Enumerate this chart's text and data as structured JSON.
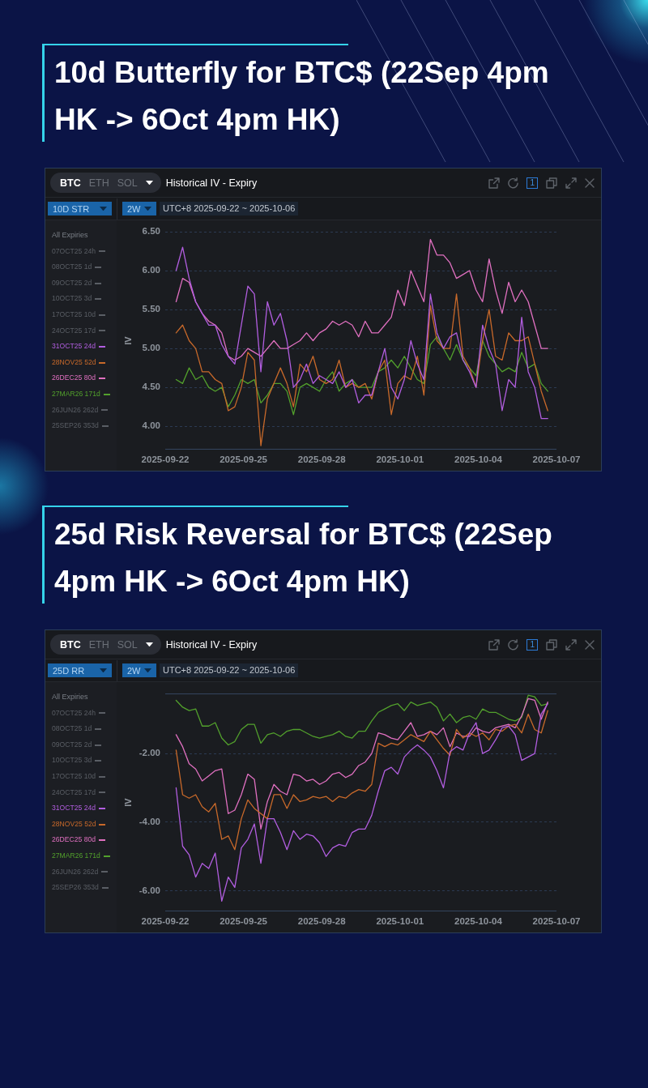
{
  "chart_data": [
    {
      "type": "line",
      "title": "10d Butterfly for BTC$ (22Sep 4pm HK -> 6Oct 4pm HK)",
      "ylabel": "IV",
      "legend": "left",
      "legend_title": "All Expiries",
      "grid": "y",
      "annotations": [
        "BTC",
        "ETH",
        "SOL",
        "Historical IV - Expiry",
        "10D STR",
        "2W",
        "UTC+8 2025-09-22 ~ 2025-10-06",
        "1"
      ],
      "xlim": [
        "2025-09-22",
        "2025-10-07"
      ],
      "xticks": [
        "2025-09-22",
        "2025-09-25",
        "2025-09-28",
        "2025-10-01",
        "2025-10-04",
        "2025-10-07"
      ],
      "ylim": [
        3.7,
        6.5
      ],
      "yticks": [
        {
          "value": 4,
          "label": "4.00"
        },
        {
          "value": 4.5,
          "label": "4.50"
        },
        {
          "value": 5,
          "label": "5.00"
        },
        {
          "value": 5.5,
          "label": "5.50"
        },
        {
          "value": 6,
          "label": "6.00"
        },
        {
          "value": 6.5,
          "label": "6.50"
        }
      ],
      "x": [
        "2025-09-22T10:00",
        "2025-09-22T16:00",
        "2025-09-22T22:00",
        "2025-09-23T04:00",
        "2025-09-23T10:00",
        "2025-09-23T16:00",
        "2025-09-23T22:00",
        "2025-09-24T04:00",
        "2025-09-24T10:00",
        "2025-09-24T16:00",
        "2025-09-24T22:00",
        "2025-09-25T04:00",
        "2025-09-25T10:00",
        "2025-09-25T16:00",
        "2025-09-25T22:00",
        "2025-09-26T04:00",
        "2025-09-26T10:00",
        "2025-09-26T16:00",
        "2025-09-26T22:00",
        "2025-09-27T04:00",
        "2025-09-27T10:00",
        "2025-09-27T16:00",
        "2025-09-27T22:00",
        "2025-09-28T04:00",
        "2025-09-28T10:00",
        "2025-09-28T16:00",
        "2025-09-28T22:00",
        "2025-09-29T04:00",
        "2025-09-29T10:00",
        "2025-09-29T16:00",
        "2025-09-29T22:00",
        "2025-09-30T04:00",
        "2025-09-30T10:00",
        "2025-09-30T16:00",
        "2025-09-30T22:00",
        "2025-10-01T04:00",
        "2025-10-01T10:00",
        "2025-10-01T16:00",
        "2025-10-01T22:00",
        "2025-10-02T04:00",
        "2025-10-02T10:00",
        "2025-10-02T16:00",
        "2025-10-02T22:00",
        "2025-10-03T04:00",
        "2025-10-03T10:00",
        "2025-10-03T16:00",
        "2025-10-03T22:00",
        "2025-10-04T04:00",
        "2025-10-04T10:00",
        "2025-10-04T16:00",
        "2025-10-04T22:00",
        "2025-10-05T04:00",
        "2025-10-05T10:00",
        "2025-10-05T16:00",
        "2025-10-05T22:00",
        "2025-10-06T04:00",
        "2025-10-06T10:00",
        "2025-10-06T16:00"
      ],
      "series": [
        {
          "name": "07OCT25 24h",
          "color": "#5a5e65",
          "values": [
            null,
            null,
            null,
            null,
            null,
            null,
            null,
            null,
            null,
            null,
            null,
            null,
            null,
            null,
            null,
            null,
            null,
            null,
            null,
            null,
            null,
            null,
            null,
            null,
            null,
            null,
            null,
            null,
            null,
            null,
            null,
            null,
            null,
            null,
            null,
            null,
            null,
            null,
            null,
            null,
            null,
            null,
            null,
            null,
            null,
            null,
            null,
            null,
            null,
            null,
            null,
            null,
            null,
            null,
            null,
            null,
            null,
            null
          ]
        },
        {
          "name": "08OCT25 1d",
          "color": "#5a5e65",
          "values": [
            null,
            null,
            null,
            null,
            null,
            null,
            null,
            null,
            null,
            null,
            null,
            null,
            null,
            null,
            null,
            null,
            null,
            null,
            null,
            null,
            null,
            null,
            null,
            null,
            null,
            null,
            null,
            null,
            null,
            null,
            null,
            null,
            null,
            null,
            null,
            null,
            null,
            null,
            null,
            null,
            null,
            null,
            null,
            null,
            null,
            null,
            null,
            null,
            null,
            null,
            null,
            null,
            null,
            null,
            null,
            null,
            null,
            null
          ]
        },
        {
          "name": "09OCT25 2d",
          "color": "#5a5e65",
          "values": [
            null,
            null,
            null,
            null,
            null,
            null,
            null,
            null,
            null,
            null,
            null,
            null,
            null,
            null,
            null,
            null,
            null,
            null,
            null,
            null,
            null,
            null,
            null,
            null,
            null,
            null,
            null,
            null,
            null,
            null,
            null,
            null,
            null,
            null,
            null,
            null,
            null,
            null,
            null,
            null,
            null,
            null,
            null,
            null,
            null,
            null,
            null,
            null,
            null,
            null,
            null,
            null,
            null,
            null,
            null,
            null,
            null,
            null
          ]
        },
        {
          "name": "10OCT25 3d",
          "color": "#5a5e65",
          "values": [
            null,
            null,
            null,
            null,
            null,
            null,
            null,
            null,
            null,
            null,
            null,
            null,
            null,
            null,
            null,
            null,
            null,
            null,
            null,
            null,
            null,
            null,
            null,
            null,
            null,
            null,
            null,
            null,
            null,
            null,
            null,
            null,
            null,
            null,
            null,
            null,
            null,
            null,
            null,
            null,
            null,
            null,
            null,
            null,
            null,
            null,
            null,
            null,
            null,
            null,
            null,
            null,
            null,
            null,
            null,
            null,
            null,
            null
          ]
        },
        {
          "name": "17OCT25 10d",
          "color": "#5a5e65",
          "values": [
            null,
            null,
            null,
            null,
            null,
            null,
            null,
            null,
            null,
            null,
            null,
            null,
            null,
            null,
            null,
            null,
            null,
            null,
            null,
            null,
            null,
            null,
            null,
            null,
            null,
            null,
            null,
            null,
            null,
            null,
            null,
            null,
            null,
            null,
            null,
            null,
            null,
            null,
            null,
            null,
            null,
            null,
            null,
            null,
            null,
            null,
            null,
            null,
            null,
            null,
            null,
            null,
            null,
            null,
            null,
            null,
            null,
            null
          ]
        },
        {
          "name": "24OCT25 17d",
          "color": "#5a5e65",
          "values": [
            null,
            null,
            null,
            null,
            null,
            null,
            null,
            null,
            null,
            null,
            null,
            null,
            null,
            null,
            null,
            null,
            null,
            null,
            null,
            null,
            null,
            null,
            null,
            null,
            null,
            null,
            null,
            null,
            null,
            null,
            null,
            null,
            null,
            null,
            null,
            null,
            null,
            null,
            null,
            null,
            null,
            null,
            null,
            null,
            null,
            null,
            null,
            null,
            null,
            null,
            null,
            null,
            null,
            null,
            null,
            null,
            null,
            null
          ]
        },
        {
          "name": "31OCT25 24d",
          "color": "#b25ee0",
          "values": [
            6.0,
            6.3,
            5.9,
            5.6,
            5.45,
            5.3,
            5.3,
            5.05,
            4.9,
            4.8,
            5.3,
            5.8,
            5.7,
            4.7,
            5.6,
            5.3,
            5.45,
            5.1,
            4.5,
            4.6,
            4.8,
            4.55,
            4.65,
            4.6,
            4.55,
            4.7,
            4.5,
            4.6,
            4.3,
            4.4,
            4.4,
            4.7,
            5.0,
            4.5,
            4.35,
            4.6,
            5.1,
            4.8,
            4.6,
            5.7,
            5.2,
            5.0,
            5.15,
            5.2,
            4.85,
            4.7,
            4.5,
            5.3,
            5.0,
            4.8,
            4.2,
            4.6,
            4.5,
            5.4,
            4.7,
            4.5,
            4.1,
            4.1
          ]
        },
        {
          "name": "28NOV25 52d",
          "color": "#c8692a",
          "values": [
            5.2,
            5.3,
            5.1,
            5.0,
            4.7,
            4.7,
            4.6,
            4.55,
            4.2,
            4.25,
            4.5,
            4.95,
            4.85,
            3.75,
            4.35,
            4.55,
            4.75,
            4.55,
            4.25,
            4.8,
            4.7,
            4.9,
            4.6,
            4.55,
            4.6,
            4.85,
            4.5,
            4.55,
            4.5,
            4.55,
            4.35,
            4.7,
            4.85,
            4.15,
            4.55,
            4.65,
            4.6,
            4.9,
            4.4,
            5.55,
            5.1,
            5.0,
            5.0,
            5.7,
            4.9,
            4.75,
            4.5,
            5.1,
            5.5,
            4.9,
            4.85,
            5.2,
            5.1,
            5.1,
            5.15,
            4.8,
            4.45,
            4.2
          ]
        },
        {
          "name": "26DEC25 80d",
          "color": "#e070c0",
          "values": [
            5.6,
            5.9,
            5.85,
            5.6,
            5.45,
            5.35,
            5.3,
            5.2,
            4.9,
            4.85,
            4.9,
            5.0,
            4.95,
            4.9,
            5.0,
            5.1,
            5.0,
            5.0,
            5.05,
            5.1,
            5.2,
            5.1,
            5.2,
            5.25,
            5.35,
            5.3,
            5.35,
            5.3,
            5.15,
            5.35,
            5.2,
            5.2,
            5.3,
            5.4,
            5.75,
            5.55,
            6.0,
            5.8,
            5.6,
            6.4,
            6.2,
            6.2,
            6.1,
            5.9,
            5.95,
            6.0,
            5.75,
            5.6,
            6.15,
            5.75,
            5.45,
            5.85,
            5.6,
            5.75,
            5.6,
            5.3,
            5.0,
            5.0
          ]
        },
        {
          "name": "27MAR26 171d",
          "color": "#52a02c",
          "values": [
            4.6,
            4.55,
            4.75,
            4.6,
            4.65,
            4.5,
            4.45,
            4.5,
            4.25,
            4.4,
            4.6,
            4.55,
            4.6,
            4.3,
            4.4,
            4.55,
            4.55,
            4.45,
            4.15,
            4.5,
            4.55,
            4.5,
            4.45,
            4.6,
            4.7,
            4.45,
            4.55,
            4.6,
            4.5,
            4.5,
            4.5,
            4.7,
            4.75,
            4.85,
            4.75,
            4.9,
            4.75,
            4.6,
            4.55,
            5.05,
            5.15,
            5.0,
            4.85,
            5.05,
            4.85,
            4.75,
            4.65,
            5.1,
            4.9,
            4.8,
            4.7,
            4.75,
            4.7,
            4.95,
            4.75,
            4.8,
            4.55,
            4.45
          ]
        },
        {
          "name": "26JUN26 262d",
          "color": "#5a5e65",
          "values": [
            null,
            null,
            null,
            null,
            null,
            null,
            null,
            null,
            null,
            null,
            null,
            null,
            null,
            null,
            null,
            null,
            null,
            null,
            null,
            null,
            null,
            null,
            null,
            null,
            null,
            null,
            null,
            null,
            null,
            null,
            null,
            null,
            null,
            null,
            null,
            null,
            null,
            null,
            null,
            null,
            null,
            null,
            null,
            null,
            null,
            null,
            null,
            null,
            null,
            null,
            null,
            null,
            null,
            null,
            null,
            null,
            null,
            null
          ]
        },
        {
          "name": "25SEP26 353d",
          "color": "#5a5e65",
          "values": [
            null,
            null,
            null,
            null,
            null,
            null,
            null,
            null,
            null,
            null,
            null,
            null,
            null,
            null,
            null,
            null,
            null,
            null,
            null,
            null,
            null,
            null,
            null,
            null,
            null,
            null,
            null,
            null,
            null,
            null,
            null,
            null,
            null,
            null,
            null,
            null,
            null,
            null,
            null,
            null,
            null,
            null,
            null,
            null,
            null,
            null,
            null,
            null,
            null,
            null,
            null,
            null,
            null,
            null,
            null,
            null,
            null,
            null
          ]
        }
      ]
    },
    {
      "type": "line",
      "title": "25d Risk Reversal for BTC$ (22Sep 4pm HK -> 6Oct 4pm HK)",
      "ylabel": "IV",
      "legend": "left",
      "legend_title": "All Expiries",
      "grid": "y",
      "annotations": [
        "BTC",
        "ETH",
        "SOL",
        "Historical IV - Expiry",
        "25D RR",
        "2W",
        "UTC+8 2025-09-22 ~ 2025-10-06",
        "1"
      ],
      "xlim": [
        "2025-09-22",
        "2025-10-07"
      ],
      "xticks": [
        "2025-09-22",
        "2025-09-25",
        "2025-09-28",
        "2025-10-01",
        "2025-10-04",
        "2025-10-07"
      ],
      "ylim": [
        -6.6,
        -0.25
      ],
      "yticks": [
        {
          "value": -6,
          "label": "-6.00"
        },
        {
          "value": -4,
          "label": "-4.00"
        },
        {
          "value": -2,
          "label": "-2.00"
        }
      ],
      "x": [
        "2025-09-22T10:00",
        "2025-09-22T16:00",
        "2025-09-22T22:00",
        "2025-09-23T04:00",
        "2025-09-23T10:00",
        "2025-09-23T16:00",
        "2025-09-23T22:00",
        "2025-09-24T04:00",
        "2025-09-24T10:00",
        "2025-09-24T16:00",
        "2025-09-24T22:00",
        "2025-09-25T04:00",
        "2025-09-25T10:00",
        "2025-09-25T16:00",
        "2025-09-25T22:00",
        "2025-09-26T04:00",
        "2025-09-26T10:00",
        "2025-09-26T16:00",
        "2025-09-26T22:00",
        "2025-09-27T04:00",
        "2025-09-27T10:00",
        "2025-09-27T16:00",
        "2025-09-27T22:00",
        "2025-09-28T04:00",
        "2025-09-28T10:00",
        "2025-09-28T16:00",
        "2025-09-28T22:00",
        "2025-09-29T04:00",
        "2025-09-29T10:00",
        "2025-09-29T16:00",
        "2025-09-29T22:00",
        "2025-09-30T04:00",
        "2025-09-30T10:00",
        "2025-09-30T16:00",
        "2025-09-30T22:00",
        "2025-10-01T04:00",
        "2025-10-01T10:00",
        "2025-10-01T16:00",
        "2025-10-01T22:00",
        "2025-10-02T04:00",
        "2025-10-02T10:00",
        "2025-10-02T16:00",
        "2025-10-02T22:00",
        "2025-10-03T04:00",
        "2025-10-03T10:00",
        "2025-10-03T16:00",
        "2025-10-03T22:00",
        "2025-10-04T04:00",
        "2025-10-04T10:00",
        "2025-10-04T16:00",
        "2025-10-04T22:00",
        "2025-10-05T04:00",
        "2025-10-05T10:00",
        "2025-10-05T16:00",
        "2025-10-05T22:00",
        "2025-10-06T04:00",
        "2025-10-06T10:00",
        "2025-10-06T16:00"
      ],
      "series": [
        {
          "name": "07OCT25 24h",
          "color": "#5a5e65",
          "values": [
            null,
            null,
            null,
            null,
            null,
            null,
            null,
            null,
            null,
            null,
            null,
            null,
            null,
            null,
            null,
            null,
            null,
            null,
            null,
            null,
            null,
            null,
            null,
            null,
            null,
            null,
            null,
            null,
            null,
            null,
            null,
            null,
            null,
            null,
            null,
            null,
            null,
            null,
            null,
            null,
            null,
            null,
            null,
            null,
            null,
            null,
            null,
            null,
            null,
            null,
            null,
            null,
            null,
            null,
            null,
            null,
            null,
            null
          ]
        },
        {
          "name": "08OCT25 1d",
          "color": "#5a5e65",
          "values": [
            null,
            null,
            null,
            null,
            null,
            null,
            null,
            null,
            null,
            null,
            null,
            null,
            null,
            null,
            null,
            null,
            null,
            null,
            null,
            null,
            null,
            null,
            null,
            null,
            null,
            null,
            null,
            null,
            null,
            null,
            null,
            null,
            null,
            null,
            null,
            null,
            null,
            null,
            null,
            null,
            null,
            null,
            null,
            null,
            null,
            null,
            null,
            null,
            null,
            null,
            null,
            null,
            null,
            null,
            null,
            null,
            null,
            null
          ]
        },
        {
          "name": "09OCT25 2d",
          "color": "#5a5e65",
          "values": [
            null,
            null,
            null,
            null,
            null,
            null,
            null,
            null,
            null,
            null,
            null,
            null,
            null,
            null,
            null,
            null,
            null,
            null,
            null,
            null,
            null,
            null,
            null,
            null,
            null,
            null,
            null,
            null,
            null,
            null,
            null,
            null,
            null,
            null,
            null,
            null,
            null,
            null,
            null,
            null,
            null,
            null,
            null,
            null,
            null,
            null,
            null,
            null,
            null,
            null,
            null,
            null,
            null,
            null,
            null,
            null,
            null,
            null
          ]
        },
        {
          "name": "10OCT25 3d",
          "color": "#5a5e65",
          "values": [
            null,
            null,
            null,
            null,
            null,
            null,
            null,
            null,
            null,
            null,
            null,
            null,
            null,
            null,
            null,
            null,
            null,
            null,
            null,
            null,
            null,
            null,
            null,
            null,
            null,
            null,
            null,
            null,
            null,
            null,
            null,
            null,
            null,
            null,
            null,
            null,
            null,
            null,
            null,
            null,
            null,
            null,
            null,
            null,
            null,
            null,
            null,
            null,
            null,
            null,
            null,
            null,
            null,
            null,
            null,
            null,
            null,
            null
          ]
        },
        {
          "name": "17OCT25 10d",
          "color": "#5a5e65",
          "values": [
            null,
            null,
            null,
            null,
            null,
            null,
            null,
            null,
            null,
            null,
            null,
            null,
            null,
            null,
            null,
            null,
            null,
            null,
            null,
            null,
            null,
            null,
            null,
            null,
            null,
            null,
            null,
            null,
            null,
            null,
            null,
            null,
            null,
            null,
            null,
            null,
            null,
            null,
            null,
            null,
            null,
            null,
            null,
            null,
            null,
            null,
            null,
            null,
            null,
            null,
            null,
            null,
            null,
            null,
            null,
            null,
            null,
            null
          ]
        },
        {
          "name": "24OCT25 17d",
          "color": "#5a5e65",
          "values": [
            null,
            null,
            null,
            null,
            null,
            null,
            null,
            null,
            null,
            null,
            null,
            null,
            null,
            null,
            null,
            null,
            null,
            null,
            null,
            null,
            null,
            null,
            null,
            null,
            null,
            null,
            null,
            null,
            null,
            null,
            null,
            null,
            null,
            null,
            null,
            null,
            null,
            null,
            null,
            null,
            null,
            null,
            null,
            null,
            null,
            null,
            null,
            null,
            null,
            null,
            null,
            null,
            null,
            null,
            null,
            null,
            null,
            null
          ]
        },
        {
          "name": "31OCT25 24d",
          "color": "#b25ee0",
          "values": [
            -3.0,
            -4.7,
            -4.95,
            -5.6,
            -5.2,
            -5.35,
            -4.9,
            -6.3,
            -5.6,
            -5.9,
            -4.75,
            -4.5,
            -4.05,
            -5.2,
            -3.9,
            -3.9,
            -4.3,
            -4.8,
            -4.25,
            -4.5,
            -4.35,
            -4.4,
            -4.6,
            -5.0,
            -4.75,
            -4.65,
            -4.7,
            -4.3,
            -4.2,
            -4.2,
            -3.8,
            -3.1,
            -2.5,
            -2.4,
            -2.6,
            -2.1,
            -1.9,
            -1.75,
            -1.9,
            -2.1,
            -2.5,
            -3.0,
            -1.95,
            -1.8,
            -1.9,
            -1.4,
            -1.1,
            -2.0,
            -1.9,
            -1.6,
            -1.25,
            -1.2,
            -1.45,
            -2.2,
            -2.1,
            -2.0,
            -0.85,
            -0.55
          ]
        },
        {
          "name": "28NOV25 52d",
          "color": "#c8692a",
          "values": [
            -1.9,
            -3.2,
            -3.3,
            -3.2,
            -3.55,
            -3.7,
            -3.45,
            -4.5,
            -4.4,
            -4.8,
            -3.9,
            -3.35,
            -3.6,
            -3.75,
            -3.9,
            -3.2,
            -3.2,
            -3.6,
            -3.2,
            -3.4,
            -3.35,
            -3.25,
            -3.3,
            -3.25,
            -3.4,
            -3.25,
            -3.3,
            -3.15,
            -3.05,
            -3.1,
            -2.9,
            -1.7,
            -1.8,
            -1.7,
            -1.75,
            -1.6,
            -1.45,
            -1.55,
            -1.65,
            -1.35,
            -1.6,
            -1.85,
            -2.05,
            -1.3,
            -1.55,
            -1.4,
            -1.5,
            -1.4,
            -1.6,
            -1.3,
            -1.35,
            -1.2,
            -1.15,
            -1.4,
            -0.85,
            -1.3,
            -1.4,
            -0.75
          ]
        },
        {
          "name": "26DEC25 80d",
          "color": "#e070c0",
          "values": [
            -1.45,
            -1.8,
            -2.3,
            -2.45,
            -2.8,
            -2.65,
            -2.5,
            -2.45,
            -3.75,
            -3.65,
            -3.2,
            -2.6,
            -2.75,
            -4.2,
            -3.4,
            -2.9,
            -3.1,
            -3.2,
            -2.6,
            -2.65,
            -2.8,
            -2.75,
            -2.9,
            -2.8,
            -2.6,
            -2.55,
            -2.7,
            -2.6,
            -2.35,
            -2.25,
            -2.0,
            -1.4,
            -1.45,
            -1.55,
            -1.6,
            -1.35,
            -1.1,
            -1.5,
            -1.45,
            -1.35,
            -1.45,
            -1.25,
            -1.8,
            -1.4,
            -1.5,
            -1.5,
            -1.25,
            -1.35,
            -1.4,
            -1.25,
            -1.2,
            -1.15,
            -1.25,
            -0.9,
            -0.4,
            -0.45,
            -1.0,
            -0.5
          ]
        },
        {
          "name": "27MAR26 171d",
          "color": "#52a02c",
          "values": [
            -0.45,
            -0.65,
            -0.75,
            -0.7,
            -1.2,
            -1.2,
            -1.1,
            -1.55,
            -1.75,
            -1.65,
            -1.3,
            -1.15,
            -1.15,
            -1.7,
            -1.45,
            -1.4,
            -1.5,
            -1.35,
            -1.3,
            -1.3,
            -1.4,
            -1.5,
            -1.55,
            -1.5,
            -1.45,
            -1.35,
            -1.5,
            -1.55,
            -1.35,
            -1.35,
            -1.05,
            -0.8,
            -0.7,
            -0.6,
            -0.55,
            -0.75,
            -0.5,
            -0.6,
            -0.55,
            -0.5,
            -0.65,
            -1.05,
            -0.85,
            -1.1,
            -0.95,
            -0.9,
            -1.0,
            -0.7,
            -0.8,
            -0.8,
            -0.9,
            -1.0,
            -1.05,
            -0.95,
            -0.3,
            -0.35,
            -0.6,
            -0.55
          ]
        },
        {
          "name": "26JUN26 262d",
          "color": "#5a5e65",
          "values": [
            null,
            null,
            null,
            null,
            null,
            null,
            null,
            null,
            null,
            null,
            null,
            null,
            null,
            null,
            null,
            null,
            null,
            null,
            null,
            null,
            null,
            null,
            null,
            null,
            null,
            null,
            null,
            null,
            null,
            null,
            null,
            null,
            null,
            null,
            null,
            null,
            null,
            null,
            null,
            null,
            null,
            null,
            null,
            null,
            null,
            null,
            null,
            null,
            null,
            null,
            null,
            null,
            null,
            null,
            null,
            null,
            null,
            null
          ]
        },
        {
          "name": "25SEP26 353d",
          "color": "#5a5e65",
          "values": [
            null,
            null,
            null,
            null,
            null,
            null,
            null,
            null,
            null,
            null,
            null,
            null,
            null,
            null,
            null,
            null,
            null,
            null,
            null,
            null,
            null,
            null,
            null,
            null,
            null,
            null,
            null,
            null,
            null,
            null,
            null,
            null,
            null,
            null,
            null,
            null,
            null,
            null,
            null,
            null,
            null,
            null,
            null,
            null,
            null,
            null,
            null,
            null,
            null,
            null,
            null,
            null,
            null,
            null,
            null,
            null,
            null,
            null
          ]
        }
      ]
    }
  ]
}
